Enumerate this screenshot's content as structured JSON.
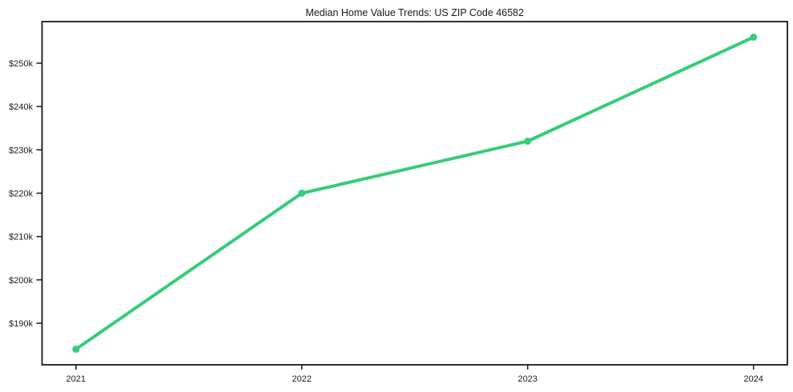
{
  "chart_data": {
    "type": "line",
    "title": "Median Home Value Trends: US ZIP Code 46582",
    "x": [
      2021,
      2022,
      2023,
      2024
    ],
    "x_tick_labels": [
      "2021",
      "2022",
      "2023",
      "2024"
    ],
    "series": [
      {
        "name": "Median Home Value",
        "values": [
          184000,
          220000,
          232000,
          256000
        ]
      }
    ],
    "y_ticks": [
      {
        "value": 190000,
        "label": "$190k"
      },
      {
        "value": 200000,
        "label": "$200k"
      },
      {
        "value": 210000,
        "label": "$210k"
      },
      {
        "value": 220000,
        "label": "$220k"
      },
      {
        "value": 230000,
        "label": "$230k"
      },
      {
        "value": 240000,
        "label": "$240k"
      },
      {
        "value": 250000,
        "label": "$250k"
      }
    ],
    "xlim": [
      2020.85,
      2024.15
    ],
    "ylim": [
      180400,
      259600
    ],
    "grid": false,
    "legend": "none",
    "line_color": "#35cd78",
    "marker": "circle",
    "axis_color": "#1a1a1a",
    "background_color": "#ffffff"
  }
}
